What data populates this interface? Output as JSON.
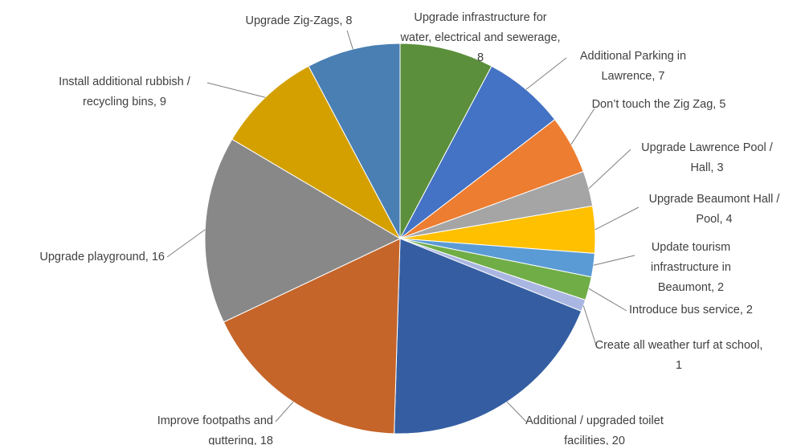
{
  "chart_data": {
    "type": "pie",
    "categories": [
      "Upgrade infrastructure for water, electrical and sewerage",
      "Additional Parking in Lawrence",
      "Don’t touch the Zig Zag",
      "Upgrade Lawrence Pool / Hall",
      "Upgrade Beaumont Hall / Pool",
      "Update tourism infrastructure in Beaumont",
      "Introduce bus service",
      "Create all weather turf at school",
      "Additional / upgraded toilet facilities",
      "Improve footpaths and guttering",
      "Upgrade playground",
      "Install additional rubbish / recycling bins",
      "Upgrade Zig-Zags"
    ],
    "values": [
      8,
      7,
      5,
      3,
      4,
      2,
      2,
      1,
      20,
      18,
      16,
      9,
      8
    ],
    "colors": [
      "#5b8f3b",
      "#4472c4",
      "#ed7d31",
      "#a5a5a5",
      "#ffc000",
      "#5b9bd5",
      "#70ad47",
      "#a9b6e2",
      "#355ea2",
      "#c5652a",
      "#888888",
      "#d4a000",
      "#4a7fb3"
    ]
  }
}
